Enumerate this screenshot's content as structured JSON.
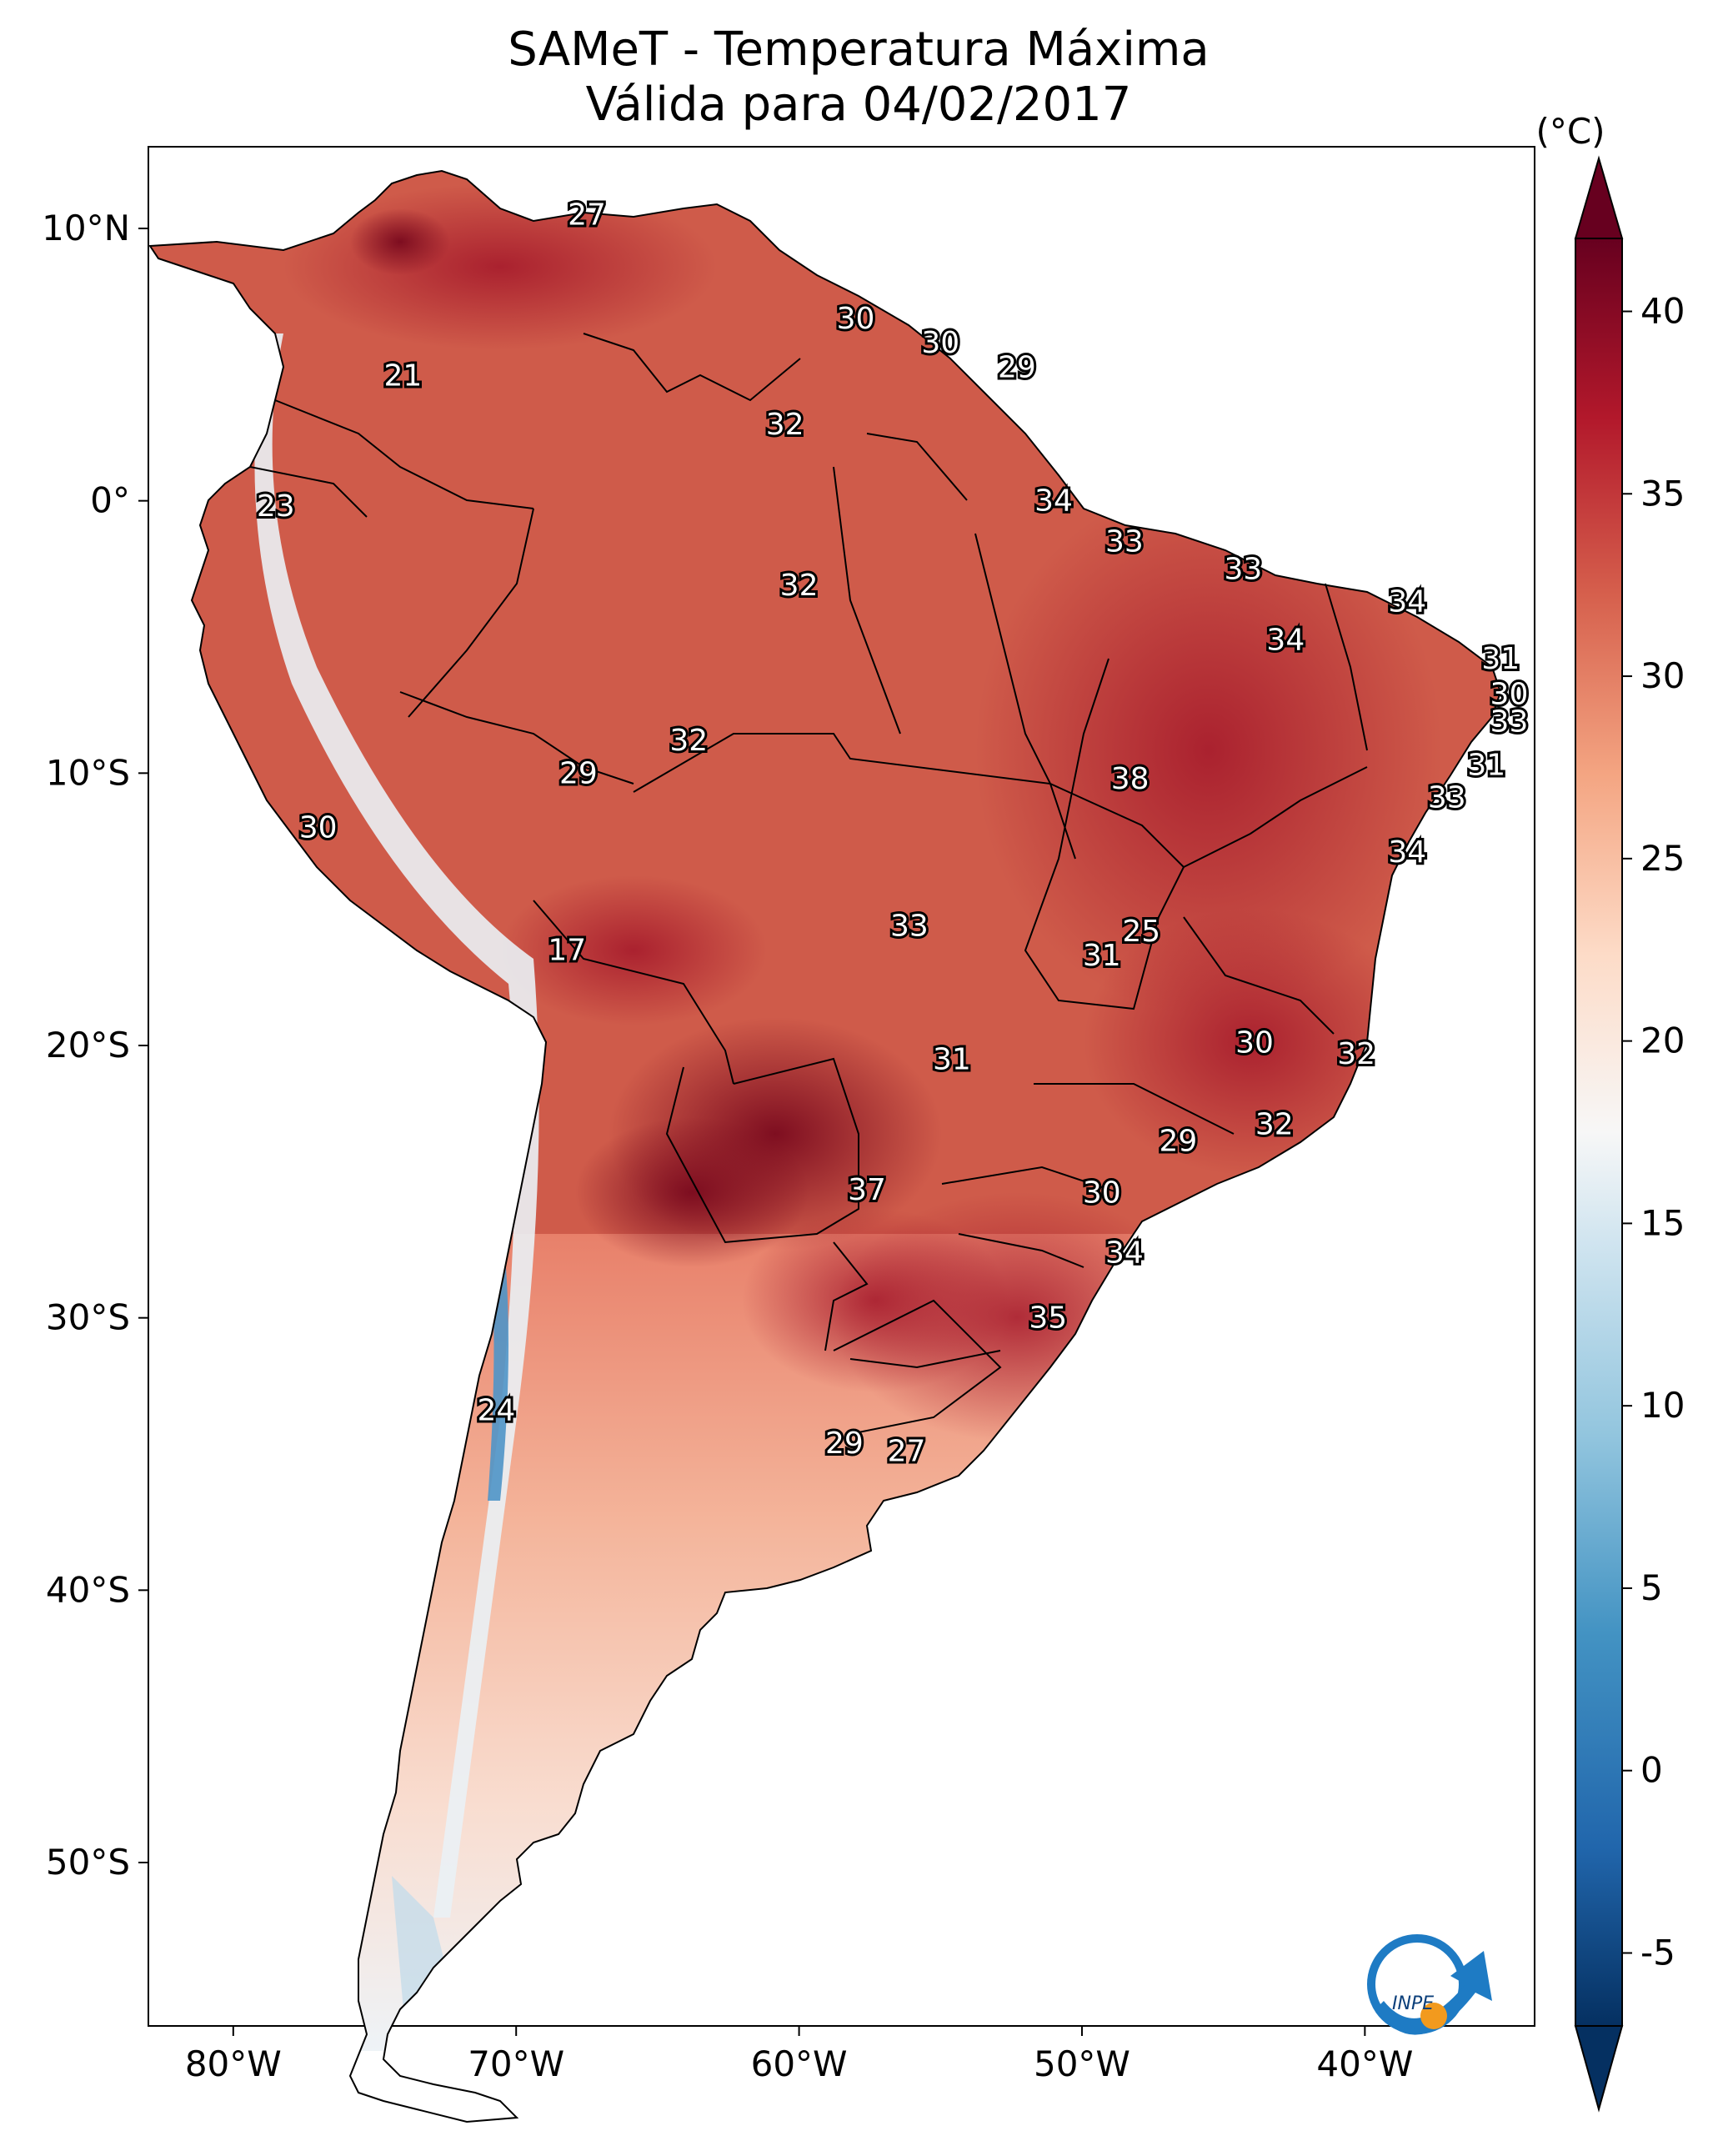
{
  "title_line1": "SAMeT - Temperatura Máxima",
  "title_line2": "Válida para 04/02/2017",
  "colorbar": {
    "unit": "(°C)",
    "ticks": [
      "40",
      "35",
      "30",
      "25",
      "20",
      "15",
      "10",
      "5",
      "0",
      "-5"
    ],
    "range": [
      -7,
      42
    ]
  },
  "axes": {
    "lat_labels": [
      "10°N",
      "0°",
      "10°S",
      "20°S",
      "30°S",
      "40°S",
      "50°S"
    ],
    "lon_labels": [
      "80°W",
      "70°W",
      "60°W",
      "50°W",
      "40°W"
    ]
  },
  "logo_text": "INPE",
  "point_values": [
    {
      "value": "27",
      "lon": -67.5,
      "lat": 10.5
    },
    {
      "value": "30",
      "lon": -58.0,
      "lat": 6.7
    },
    {
      "value": "30",
      "lon": -55.0,
      "lat": 5.8
    },
    {
      "value": "29",
      "lon": -52.3,
      "lat": 4.9
    },
    {
      "value": "21",
      "lon": -74.0,
      "lat": 4.6
    },
    {
      "value": "32",
      "lon": -60.5,
      "lat": 2.8
    },
    {
      "value": "23",
      "lon": -78.5,
      "lat": -0.2
    },
    {
      "value": "34",
      "lon": -51.0,
      "lat": 0.0
    },
    {
      "value": "33",
      "lon": -48.5,
      "lat": -1.5
    },
    {
      "value": "33",
      "lon": -44.3,
      "lat": -2.5
    },
    {
      "value": "32",
      "lon": -60.0,
      "lat": -3.1
    },
    {
      "value": "34",
      "lon": -38.5,
      "lat": -3.7
    },
    {
      "value": "34",
      "lon": -42.8,
      "lat": -5.1
    },
    {
      "value": "31",
      "lon": -35.2,
      "lat": -5.8
    },
    {
      "value": "30",
      "lon": -34.9,
      "lat": -7.1
    },
    {
      "value": "33",
      "lon": -34.9,
      "lat": -8.1
    },
    {
      "value": "32",
      "lon": -63.9,
      "lat": -8.8
    },
    {
      "value": "31",
      "lon": -35.7,
      "lat": -9.7
    },
    {
      "value": "29",
      "lon": -67.8,
      "lat": -10.0
    },
    {
      "value": "38",
      "lon": -48.3,
      "lat": -10.2
    },
    {
      "value": "33",
      "lon": -37.1,
      "lat": -10.9
    },
    {
      "value": "30",
      "lon": -77.0,
      "lat": -12.0
    },
    {
      "value": "34",
      "lon": -38.5,
      "lat": -12.9
    },
    {
      "value": "33",
      "lon": -56.1,
      "lat": -15.6
    },
    {
      "value": "25",
      "lon": -47.9,
      "lat": -15.8
    },
    {
      "value": "31",
      "lon": -49.3,
      "lat": -16.7
    },
    {
      "value": "17",
      "lon": -68.2,
      "lat": -16.5
    },
    {
      "value": "30",
      "lon": -43.9,
      "lat": -19.9
    },
    {
      "value": "32",
      "lon": -40.3,
      "lat": -20.3
    },
    {
      "value": "31",
      "lon": -54.6,
      "lat": -20.5
    },
    {
      "value": "32",
      "lon": -43.2,
      "lat": -22.9
    },
    {
      "value": "29",
      "lon": -46.6,
      "lat": -23.5
    },
    {
      "value": "37",
      "lon": -57.6,
      "lat": -25.3
    },
    {
      "value": "30",
      "lon": -49.3,
      "lat": -25.4
    },
    {
      "value": "34",
      "lon": -48.5,
      "lat": -27.6
    },
    {
      "value": "35",
      "lon": -51.2,
      "lat": -30.0
    },
    {
      "value": "24",
      "lon": -70.7,
      "lat": -33.4
    },
    {
      "value": "29",
      "lon": -58.4,
      "lat": -34.6
    },
    {
      "value": "27",
      "lon": -56.2,
      "lat": -34.9
    }
  ]
}
